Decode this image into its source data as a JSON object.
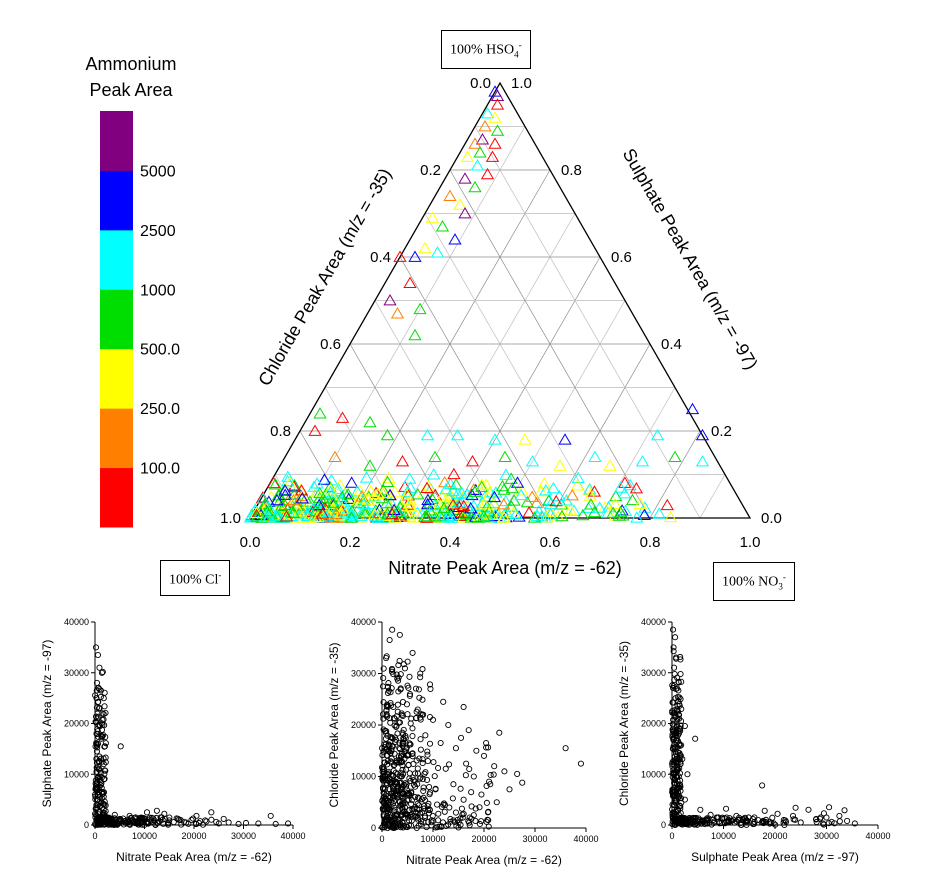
{
  "legend": {
    "title_line1": "Ammonium",
    "title_line2": "Peak Area",
    "colors": [
      "#ff0000",
      "#ff8000",
      "#ffff00",
      "#00dd00",
      "#00ffff",
      "#0000ff",
      "#800080"
    ],
    "labels": [
      "100.0",
      "250.0",
      "500.0",
      "1000",
      "2500",
      "5000"
    ]
  },
  "corner_labels": {
    "top": {
      "prefix": "100% HSO",
      "sub": "4",
      "sup": "-"
    },
    "left": {
      "prefix": "100% Cl",
      "sub": "",
      "sup": "-"
    },
    "right": {
      "prefix": "100% NO",
      "sub": "3",
      "sup": "-"
    }
  },
  "chart_data": [
    {
      "type": "scatter",
      "subtype": "ternary",
      "xlabel": "Nitrate Peak Area (m/z = -62)",
      "left_axis_label": "Chloride Peak Area (m/z = -35)",
      "right_axis_label": "Sulphate Peak Area (m/z = -97)",
      "bottom_ticks": [
        "0.0",
        "0.2",
        "0.4",
        "0.6",
        "0.8",
        "1.0"
      ],
      "left_ticks": [
        "1.0",
        "0.8",
        "0.6",
        "0.4",
        "0.2",
        "0.0"
      ],
      "right_ticks": [
        "0.0",
        "0.2",
        "0.4",
        "0.6",
        "0.8",
        "1.0"
      ],
      "grid": true,
      "marker": "open-triangle",
      "color_by": "Ammonium Peak Area",
      "points": [
        {
          "nitrate": 0.0,
          "sulphate": 0.98,
          "c": 5
        },
        {
          "nitrate": 0.01,
          "sulphate": 0.97,
          "c": 6
        },
        {
          "nitrate": 0.02,
          "sulphate": 0.95,
          "c": 0
        },
        {
          "nitrate": 0.01,
          "sulphate": 0.93,
          "c": 4
        },
        {
          "nitrate": 0.03,
          "sulphate": 0.92,
          "c": 2
        },
        {
          "nitrate": 0.02,
          "sulphate": 0.9,
          "c": 1
        },
        {
          "nitrate": 0.05,
          "sulphate": 0.89,
          "c": 3
        },
        {
          "nitrate": 0.03,
          "sulphate": 0.87,
          "c": 6
        },
        {
          "nitrate": 0.06,
          "sulphate": 0.86,
          "c": 0
        },
        {
          "nitrate": 0.02,
          "sulphate": 0.86,
          "c": 1
        },
        {
          "nitrate": 0.04,
          "sulphate": 0.84,
          "c": 3
        },
        {
          "nitrate": 0.07,
          "sulphate": 0.83,
          "c": 0
        },
        {
          "nitrate": 0.02,
          "sulphate": 0.83,
          "c": 2
        },
        {
          "nitrate": 0.05,
          "sulphate": 0.81,
          "c": 4
        },
        {
          "nitrate": 0.08,
          "sulphate": 0.79,
          "c": 0
        },
        {
          "nitrate": 0.04,
          "sulphate": 0.78,
          "c": 6
        },
        {
          "nitrate": 0.07,
          "sulphate": 0.76,
          "c": 3
        },
        {
          "nitrate": 0.03,
          "sulphate": 0.74,
          "c": 1
        },
        {
          "nitrate": 0.06,
          "sulphate": 0.72,
          "c": 2
        },
        {
          "nitrate": 0.08,
          "sulphate": 0.7,
          "c": 6
        },
        {
          "nitrate": 0.02,
          "sulphate": 0.69,
          "c": 2
        },
        {
          "nitrate": 0.05,
          "sulphate": 0.67,
          "c": 3
        },
        {
          "nitrate": 0.09,
          "sulphate": 0.64,
          "c": 5
        },
        {
          "nitrate": 0.04,
          "sulphate": 0.62,
          "c": 2
        },
        {
          "nitrate": 0.07,
          "sulphate": 0.61,
          "c": 4
        },
        {
          "nitrate": 0.03,
          "sulphate": 0.6,
          "c": 5
        },
        {
          "nitrate": 0.0,
          "sulphate": 0.6,
          "c": 0
        },
        {
          "nitrate": 0.05,
          "sulphate": 0.54,
          "c": 0
        },
        {
          "nitrate": 0.03,
          "sulphate": 0.5,
          "c": 6
        },
        {
          "nitrate": 0.1,
          "sulphate": 0.48,
          "c": 3
        },
        {
          "nitrate": 0.06,
          "sulphate": 0.47,
          "c": 1
        },
        {
          "nitrate": 0.12,
          "sulphate": 0.42,
          "c": 3
        },
        {
          "nitrate": 0.02,
          "sulphate": 0.24,
          "c": 3
        },
        {
          "nitrate": 0.07,
          "sulphate": 0.23,
          "c": 0
        },
        {
          "nitrate": 0.13,
          "sulphate": 0.22,
          "c": 3
        },
        {
          "nitrate": 0.03,
          "sulphate": 0.2,
          "c": 0
        },
        {
          "nitrate": 0.18,
          "sulphate": 0.19,
          "c": 3
        },
        {
          "nitrate": 0.26,
          "sulphate": 0.19,
          "c": 4
        },
        {
          "nitrate": 0.32,
          "sulphate": 0.19,
          "c": 4
        },
        {
          "nitrate": 0.4,
          "sulphate": 0.18,
          "c": 4
        },
        {
          "nitrate": 0.46,
          "sulphate": 0.18,
          "c": 2
        },
        {
          "nitrate": 0.54,
          "sulphate": 0.18,
          "c": 5
        },
        {
          "nitrate": 0.76,
          "sulphate": 0.25,
          "c": 5
        },
        {
          "nitrate": 0.72,
          "sulphate": 0.19,
          "c": 4
        },
        {
          "nitrate": 0.81,
          "sulphate": 0.19,
          "c": 5
        },
        {
          "nitrate": 0.1,
          "sulphate": 0.14,
          "c": 1
        },
        {
          "nitrate": 0.18,
          "sulphate": 0.12,
          "c": 3
        },
        {
          "nitrate": 0.24,
          "sulphate": 0.13,
          "c": 0
        },
        {
          "nitrate": 0.3,
          "sulphate": 0.14,
          "c": 3
        },
        {
          "nitrate": 0.38,
          "sulphate": 0.13,
          "c": 0
        },
        {
          "nitrate": 0.44,
          "sulphate": 0.14,
          "c": 3
        },
        {
          "nitrate": 0.5,
          "sulphate": 0.13,
          "c": 4
        },
        {
          "nitrate": 0.56,
          "sulphate": 0.12,
          "c": 2
        },
        {
          "nitrate": 0.62,
          "sulphate": 0.14,
          "c": 4
        },
        {
          "nitrate": 0.66,
          "sulphate": 0.12,
          "c": 2
        },
        {
          "nitrate": 0.72,
          "sulphate": 0.13,
          "c": 4
        },
        {
          "nitrate": 0.78,
          "sulphate": 0.14,
          "c": 3
        },
        {
          "nitrate": 0.84,
          "sulphate": 0.13,
          "c": 4
        }
      ],
      "dense_band": {
        "sulphate_range": [
          0.0,
          0.11
        ],
        "nitrate_range": [
          0.0,
          0.93
        ],
        "dominant_classes": [
          2,
          3,
          4
        ]
      }
    },
    {
      "type": "scatter",
      "xlabel": "Nitrate Peak Area (m/z = -62)",
      "ylabel": "Sulphate Peak Area (m/z = -97)",
      "xlim": [
        0,
        40000
      ],
      "ylim": [
        0,
        40000
      ],
      "xticks": [
        "0",
        "10000",
        "20000",
        "30000",
        "40000"
      ],
      "yticks": [
        "0",
        "10000",
        "20000",
        "30000",
        "40000"
      ],
      "marker": "open-circle",
      "points": [
        [
          200,
          35000
        ],
        [
          600,
          33500
        ],
        [
          900,
          31000
        ],
        [
          400,
          28000
        ],
        [
          700,
          27000
        ],
        [
          1200,
          26500
        ],
        [
          300,
          25000
        ],
        [
          800,
          23000
        ],
        [
          1500,
          22000
        ],
        [
          500,
          21000
        ],
        [
          1000,
          19500
        ],
        [
          300,
          18000
        ],
        [
          1300,
          17000
        ],
        [
          600,
          16000
        ],
        [
          2000,
          15500
        ],
        [
          400,
          14500
        ],
        [
          900,
          13500
        ],
        [
          5200,
          15500
        ],
        [
          1500,
          12500
        ],
        [
          700,
          11500
        ],
        [
          300,
          10500
        ],
        [
          1100,
          9500
        ],
        [
          1800,
          9000
        ],
        [
          500,
          8500
        ],
        [
          900,
          7500
        ],
        [
          200,
          7000
        ],
        [
          1400,
          6500
        ],
        [
          600,
          6000
        ],
        [
          1000,
          5500
        ],
        [
          400,
          5000
        ],
        [
          2500,
          1500
        ],
        [
          3500,
          900
        ],
        [
          5000,
          1200
        ],
        [
          6500,
          700
        ],
        [
          8000,
          1400
        ],
        [
          9500,
          600
        ],
        [
          11000,
          1100
        ],
        [
          12500,
          2800
        ],
        [
          13500,
          1500
        ],
        [
          15000,
          900
        ],
        [
          16500,
          1300
        ],
        [
          18000,
          600
        ],
        [
          19500,
          1000
        ],
        [
          21000,
          400
        ],
        [
          22500,
          700
        ],
        [
          23500,
          2500
        ],
        [
          25000,
          300
        ],
        [
          27000,
          500
        ],
        [
          29000,
          200
        ],
        [
          30500,
          400
        ],
        [
          33000,
          300
        ],
        [
          35500,
          1800
        ],
        [
          39000,
          300
        ],
        [
          36500,
          200
        ],
        [
          10500,
          2500
        ],
        [
          20500,
          1800
        ],
        [
          26000,
          1200
        ],
        [
          14000,
          2200
        ],
        [
          4000,
          2000
        ],
        [
          7000,
          1800
        ]
      ]
    },
    {
      "type": "scatter",
      "xlabel": "Nitrate Peak Area (m/z = -62)",
      "ylabel": "Chloride Peak Area (m/z = -35)",
      "xlim": [
        0,
        40000
      ],
      "ylim": [
        0,
        40000
      ],
      "xticks": [
        "0",
        "10000",
        "20000",
        "30000",
        "40000"
      ],
      "yticks": [
        "0",
        "10000",
        "20000",
        "30000",
        "40000"
      ],
      "marker": "open-circle",
      "points": [
        [
          2000,
          38500
        ],
        [
          3500,
          37500
        ],
        [
          1500,
          36500
        ],
        [
          6000,
          34000
        ],
        [
          800,
          33000
        ],
        [
          4500,
          31000
        ],
        [
          7500,
          30000
        ],
        [
          3000,
          29000
        ],
        [
          9500,
          27000
        ],
        [
          5500,
          26000
        ],
        [
          12000,
          24500
        ],
        [
          16000,
          23500
        ],
        [
          7000,
          23000
        ],
        [
          10000,
          21000
        ],
        [
          13000,
          20000
        ],
        [
          17000,
          19000
        ],
        [
          4000,
          18500
        ],
        [
          8500,
          18000
        ],
        [
          11500,
          16500
        ],
        [
          14500,
          15500
        ],
        [
          18500,
          15000
        ],
        [
          6000,
          14500
        ],
        [
          20000,
          14000
        ],
        [
          9000,
          13000
        ],
        [
          16500,
          12500
        ],
        [
          22000,
          12000
        ],
        [
          12500,
          11500
        ],
        [
          24000,
          11000
        ],
        [
          3000,
          10500
        ],
        [
          18000,
          10000
        ],
        [
          8000,
          9500
        ],
        [
          21000,
          9000
        ],
        [
          14000,
          8500
        ],
        [
          25000,
          7500
        ],
        [
          10500,
          7500
        ],
        [
          19500,
          6500
        ],
        [
          6500,
          6000
        ],
        [
          16000,
          5500
        ],
        [
          22500,
          5000
        ],
        [
          12000,
          4500
        ],
        [
          4500,
          4000
        ],
        [
          9000,
          3500
        ],
        [
          14500,
          3000
        ],
        [
          18000,
          2500
        ],
        [
          7000,
          2000
        ],
        [
          11000,
          1500
        ],
        [
          3500,
          1000
        ],
        [
          20500,
          1200
        ],
        [
          27500,
          8800
        ],
        [
          36000,
          15500
        ],
        [
          39000,
          12500
        ],
        [
          15500,
          17500
        ],
        [
          23000,
          18500
        ],
        [
          5000,
          6500
        ],
        [
          26500,
          10500
        ]
      ],
      "dense_region": {
        "x": [
          0,
          10000
        ],
        "y": [
          0,
          35000
        ]
      }
    },
    {
      "type": "scatter",
      "xlabel": "Sulphate Peak Area (m/z = -97)",
      "ylabel": "Chloride Peak Area (m/z = -35)",
      "xlim": [
        0,
        40000
      ],
      "ylim": [
        0,
        40000
      ],
      "xticks": [
        "0",
        "10000",
        "20000",
        "30000",
        "40000"
      ],
      "yticks": [
        "0",
        "10000",
        "20000",
        "30000",
        "40000"
      ],
      "marker": "open-circle",
      "points": [
        [
          200,
          38500
        ],
        [
          600,
          37000
        ],
        [
          300,
          35000
        ],
        [
          800,
          33000
        ],
        [
          400,
          31000
        ],
        [
          1000,
          29000
        ],
        [
          200,
          27000
        ],
        [
          700,
          25000
        ],
        [
          1500,
          23500
        ],
        [
          300,
          22000
        ],
        [
          900,
          20500
        ],
        [
          2500,
          19500
        ],
        [
          500,
          18000
        ],
        [
          1200,
          16500
        ],
        [
          4500,
          17000
        ],
        [
          300,
          15500
        ],
        [
          800,
          14000
        ],
        [
          2000,
          13000
        ],
        [
          400,
          12000
        ],
        [
          1000,
          11000
        ],
        [
          3000,
          10000
        ],
        [
          600,
          9000
        ],
        [
          1500,
          8000
        ],
        [
          200,
          7000
        ],
        [
          900,
          6000
        ],
        [
          2500,
          5000
        ],
        [
          400,
          4000
        ],
        [
          1200,
          3000
        ],
        [
          5500,
          3000
        ],
        [
          7500,
          2000
        ],
        [
          9000,
          1500
        ],
        [
          11000,
          500
        ],
        [
          12500,
          1800
        ],
        [
          14500,
          800
        ],
        [
          16000,
          1500
        ],
        [
          17500,
          7800
        ],
        [
          19000,
          600
        ],
        [
          20500,
          2200
        ],
        [
          22000,
          900
        ],
        [
          23500,
          1800
        ],
        [
          25000,
          500
        ],
        [
          26500,
          3000
        ],
        [
          28000,
          1200
        ],
        [
          29500,
          2300
        ],
        [
          31000,
          600
        ],
        [
          32500,
          1800
        ],
        [
          34000,
          800
        ],
        [
          35500,
          300
        ],
        [
          10500,
          3200
        ],
        [
          6500,
          1000
        ],
        [
          18000,
          2800
        ],
        [
          24000,
          3400
        ],
        [
          30500,
          3500
        ],
        [
          33500,
          2900
        ]
      ]
    }
  ]
}
